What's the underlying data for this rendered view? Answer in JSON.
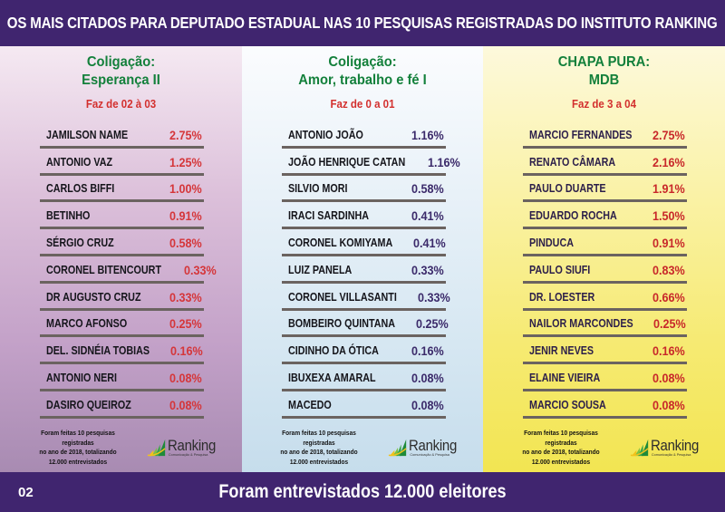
{
  "header": {
    "title": "OS MAIS CITADOS PARA DEPUTADO ESTADUAL NAS 10 PESQUISAS REGISTRADAS DO INSTITUTO RANKING"
  },
  "colors": {
    "bar_background": "#40256f",
    "coalition_title": "#13803b",
    "range_text": "#d3302e",
    "panel_1_percent": "#d5363a",
    "panel_2_percent": "#3b2a6a",
    "panel_3_percent": "#c8282a",
    "divider": "#6b6360"
  },
  "panels": [
    {
      "title_line_1": "Coligação:",
      "title_line_2": "Esperança II",
      "range": "Faz de 02 à 03",
      "candidates": [
        {
          "name": "JAMILSON NAME",
          "percent": "2.75%"
        },
        {
          "name": "ANTONIO VAZ",
          "percent": "1.25%"
        },
        {
          "name": "CARLOS BIFFI",
          "percent": "1.00%"
        },
        {
          "name": "BETINHO",
          "percent": "0.91%"
        },
        {
          "name": "SÉRGIO CRUZ",
          "percent": "0.58%"
        },
        {
          "name": "CORONEL BITENCOURT",
          "percent": "0.33%"
        },
        {
          "name": "DR AUGUSTO CRUZ",
          "percent": "0.33%"
        },
        {
          "name": "MARCO AFONSO",
          "percent": "0.25%"
        },
        {
          "name": "DEL. SIDNÉIA TOBIAS",
          "percent": "0.16%"
        },
        {
          "name": "ANTONIO NERI",
          "percent": "0.08%"
        },
        {
          "name": "DASIRO QUEIROZ",
          "percent": "0.08%"
        }
      ],
      "footnote_line_1": "Foram feitas 10 pesquisas registradas",
      "footnote_line_2": "no ano de 2018, totalizando",
      "footnote_line_3": "12.000 entrevistados",
      "logo_word": "Ranking",
      "logo_tagline": "Comunicação & Pesquisa"
    },
    {
      "title_line_1": "Coligação:",
      "title_line_2": "Amor, trabalho e fé I",
      "range": "Faz de 0 a 01",
      "candidates": [
        {
          "name": "ANTONIO JOÃO",
          "percent": "1.16%"
        },
        {
          "name": "JOÃO HENRIQUE CATAN",
          "percent": "1.16%"
        },
        {
          "name": "SILVIO MORI",
          "percent": "0.58%"
        },
        {
          "name": "IRACI SARDINHA",
          "percent": "0.41%"
        },
        {
          "name": "CORONEL KOMIYAMA",
          "percent": "0.41%"
        },
        {
          "name": "LUIZ PANELA",
          "percent": "0.33%"
        },
        {
          "name": "CORONEL VILLASANTI",
          "percent": "0.33%"
        },
        {
          "name": "BOMBEIRO QUINTANA",
          "percent": "0.25%"
        },
        {
          "name": "CIDINHO DA ÓTICA",
          "percent": "0.16%"
        },
        {
          "name": "IBUXEXA AMARAL",
          "percent": "0.08%"
        },
        {
          "name": "MACEDO",
          "percent": "0.08%"
        }
      ],
      "footnote_line_1": "Foram feitas 10 pesquisas registradas",
      "footnote_line_2": "no ano de 2018, totalizando",
      "footnote_line_3": "12.000 entrevistados",
      "logo_word": "Ranking",
      "logo_tagline": "Comunicação & Pesquisa"
    },
    {
      "title_line_1": "CHAPA PURA:",
      "title_line_2": "MDB",
      "range": "Faz de 3 a 04",
      "candidates": [
        {
          "name": "MARCIO FERNANDES",
          "percent": "2.75%"
        },
        {
          "name": "RENATO CÂMARA",
          "percent": "2.16%"
        },
        {
          "name": "PAULO DUARTE",
          "percent": "1.91%"
        },
        {
          "name": "EDUARDO ROCHA",
          "percent": "1.50%"
        },
        {
          "name": "PINDUCA",
          "percent": "0.91%"
        },
        {
          "name": "PAULO SIUFI",
          "percent": "0.83%"
        },
        {
          "name": "DR. LOESTER",
          "percent": "0.66%"
        },
        {
          "name": "NAILOR MARCONDES",
          "percent": "0.25%"
        },
        {
          "name": "JENIR NEVES",
          "percent": "0.16%"
        },
        {
          "name": "ELAINE VIEIRA",
          "percent": "0.08%"
        },
        {
          "name": "MARCIO SOUSA",
          "percent": "0.08%"
        }
      ],
      "footnote_line_1": "Foram feitas 10 pesquisas registradas",
      "footnote_line_2": "no ano de 2018, totalizando",
      "footnote_line_3": "12.000 entrevistados",
      "logo_word": "Ranking",
      "logo_tagline": "Comunicação & Pesquisa"
    }
  ],
  "footer": {
    "page_number": "02",
    "title": "Foram entrevistados 12.000 eleitores"
  },
  "icons": {
    "logo_mark": "ranking-logo-icon"
  }
}
